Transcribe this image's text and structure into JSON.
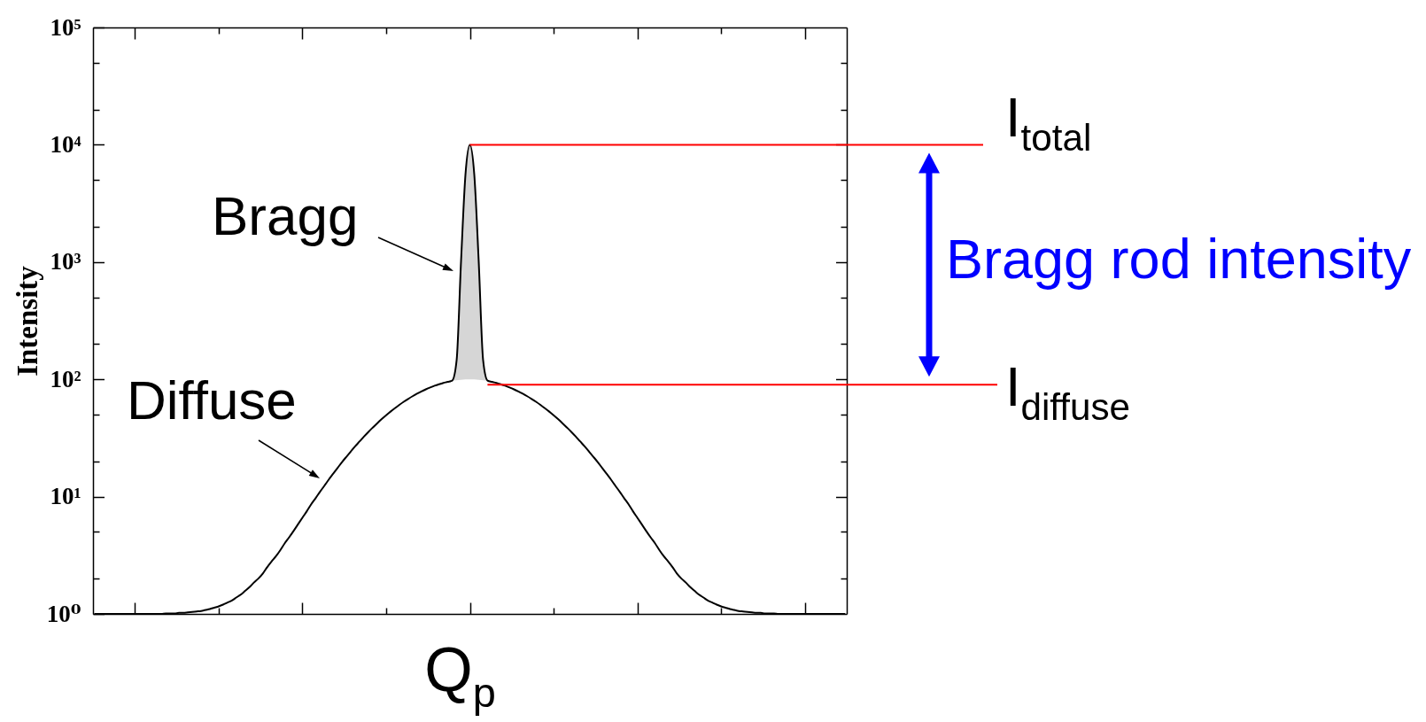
{
  "chart_data": {
    "type": "line",
    "xlabel": "Q$_{p}$",
    "ylabel": "Intensity",
    "categories": [
      null,
      null,
      null,
      null,
      null,
      null,
      null,
      null,
      null,
      null,
      null,
      null,
      null,
      null,
      null,
      null,
      null,
      null,
      null,
      null,
      null,
      null,
      null,
      null,
      null,
      null,
      null,
      null,
      null,
      null,
      null,
      null,
      null,
      null,
      null,
      null,
      null,
      null,
      null,
      null,
      null,
      null,
      null,
      null,
      null,
      null,
      null,
      null,
      null,
      null,
      null,
      null,
      null,
      null,
      null,
      null,
      null,
      null,
      null,
      null,
      null,
      null,
      null,
      null,
      null,
      null,
      null,
      null,
      null,
      null,
      null,
      null,
      null,
      null,
      null,
      null,
      null,
      null,
      null,
      null,
      null,
      null,
      null,
      null,
      null,
      null,
      null,
      null,
      null,
      null,
      null,
      null,
      null,
      null,
      null,
      null,
      null,
      null,
      null,
      null,
      null,
      null,
      null,
      null,
      null,
      null,
      null,
      null,
      null,
      null,
      null,
      null,
      null,
      null,
      null,
      null,
      null,
      null,
      null,
      null,
      null,
      null,
      null,
      null,
      null,
      null,
      null,
      null,
      null,
      null,
      null,
      null,
      null,
      null,
      null,
      null,
      null,
      null,
      null,
      null,
      null,
      null,
      null,
      null,
      null,
      null,
      null,
      null,
      null,
      null,
      null,
      null,
      null,
      null,
      null,
      null,
      null,
      null,
      null,
      null,
      null,
      null,
      null,
      null,
      null,
      null,
      null,
      null,
      null,
      null,
      null
    ],
    "series": [
      {
        "color": "#000000",
        "values": [
          1,
          1,
          1,
          1,
          1,
          1,
          1,
          1,
          1,
          1,
          1,
          1,
          1,
          1,
          1,
          1,
          1.01,
          1.01,
          1.01,
          1.02,
          1.02,
          1.03,
          1.04,
          1.05,
          1.06,
          1.08,
          1.1,
          1.13,
          1.16,
          1.2,
          1.25,
          1.3,
          1.38,
          1.46,
          1.57,
          1.69,
          1.85,
          2,
          2.2,
          2.5,
          2.8,
          3.1,
          3.5,
          4,
          4.5,
          5.1,
          5.8,
          6.6,
          7.5,
          8.6,
          9.7,
          11,
          12.4,
          14,
          15.7,
          17.6,
          19.7,
          21.9,
          24.3,
          26.9,
          29.6,
          32.6,
          35.7,
          38.9,
          42.3,
          45.8,
          49.4,
          53.1,
          56.8,
          60.6,
          64.4,
          68.1,
          71.8,
          75.4,
          78.9,
          82.2,
          85.3,
          88.2,
          90.8,
          93.2,
          95.2,
          97.7,
          146,
          1020,
          5570,
          10000,
          5570,
          1020,
          146,
          97.7,
          95.2,
          93.2,
          90.8,
          88.2,
          85.3,
          82.2,
          78.9,
          75.4,
          71.8,
          68.1,
          64.4,
          60.6,
          56.8,
          53.1,
          49.4,
          45.8,
          42.3,
          38.9,
          35.7,
          32.6,
          29.6,
          26.9,
          24.3,
          21.9,
          19.7,
          17.6,
          15.7,
          14,
          12.4,
          11,
          9.7,
          8.6,
          7.5,
          6.6,
          5.8,
          5.1,
          4.5,
          4,
          3.5,
          3.1,
          2.8,
          2.5,
          2.2,
          2,
          1.85,
          1.69,
          1.57,
          1.46,
          1.38,
          1.3,
          1.25,
          1.2,
          1.16,
          1.13,
          1.1,
          1.08,
          1.06,
          1.05,
          1.04,
          1.03,
          1.02,
          1.02,
          1.01,
          1.01,
          1.01,
          1,
          1,
          1,
          1,
          1,
          1,
          1,
          1,
          1,
          1,
          1,
          1,
          1,
          1,
          1,
          1
        ],
        "lower": [
          null,
          null,
          null,
          null,
          null,
          null,
          null,
          null,
          null,
          null,
          null,
          null,
          null,
          null,
          null,
          null,
          null,
          null,
          null,
          null,
          null,
          null,
          null,
          null,
          null,
          null,
          null,
          null,
          null,
          null,
          null,
          null,
          null,
          null,
          null,
          null,
          null,
          null,
          null,
          null,
          null,
          null,
          null,
          null,
          null,
          null,
          null,
          null,
          null,
          null,
          null,
          null,
          null,
          null,
          null,
          null,
          null,
          null,
          null,
          null,
          null,
          null,
          null,
          null,
          null,
          null,
          null,
          null,
          null,
          null,
          null,
          null,
          null,
          null,
          null,
          null,
          null,
          null,
          null,
          null,
          null,
          96.9,
          98.2,
          99.2,
          99.8,
          100,
          99.8,
          99.2,
          98.2,
          96.9,
          null,
          null,
          null,
          null,
          null,
          null,
          null,
          null,
          null,
          null,
          null,
          null,
          null,
          null,
          null,
          null,
          null,
          null,
          null,
          null,
          null,
          null,
          null,
          null,
          null,
          null,
          null,
          null,
          null,
          null,
          null,
          null,
          null,
          null,
          null,
          null,
          null,
          null,
          null,
          null,
          null,
          null,
          null,
          null,
          null,
          null,
          null,
          null,
          null,
          null,
          null,
          null,
          null,
          null,
          null,
          null,
          null,
          null,
          null,
          null,
          null,
          null,
          null,
          null,
          null,
          null,
          null,
          null,
          null,
          null,
          null,
          null,
          null,
          null,
          null,
          null,
          null,
          null,
          null,
          null,
          null
        ],
        "upper": [
          null,
          null,
          null,
          null,
          null,
          null,
          null,
          null,
          null,
          null,
          null,
          null,
          null,
          null,
          null,
          null,
          null,
          null,
          null,
          null,
          null,
          null,
          null,
          null,
          null,
          null,
          null,
          null,
          null,
          null,
          null,
          null,
          null,
          null,
          null,
          null,
          null,
          null,
          null,
          null,
          null,
          null,
          null,
          null,
          null,
          null,
          null,
          null,
          null,
          null,
          null,
          null,
          null,
          null,
          null,
          null,
          null,
          null,
          null,
          null,
          null,
          null,
          null,
          null,
          null,
          null,
          null,
          null,
          null,
          null,
          null,
          null,
          null,
          null,
          null,
          null,
          null,
          null,
          null,
          null,
          null,
          97.7,
          146,
          1020,
          5570,
          10000,
          5570,
          1020,
          146,
          97.7,
          null,
          null,
          null,
          null,
          null,
          null,
          null,
          null,
          null,
          null,
          null,
          null,
          null,
          null,
          null,
          null,
          null,
          null,
          null,
          null,
          null,
          null,
          null,
          null,
          null,
          null,
          null,
          null,
          null,
          null,
          null,
          null,
          null,
          null,
          null,
          null,
          null,
          null,
          null,
          null,
          null,
          null,
          null,
          null,
          null,
          null,
          null,
          null,
          null,
          null,
          null,
          null,
          null,
          null,
          null,
          null,
          null,
          null,
          null,
          null,
          null,
          null,
          null,
          null,
          null,
          null,
          null,
          null,
          null,
          null,
          null,
          null,
          null,
          null,
          null,
          null,
          null,
          null,
          null,
          null,
          null
        ]
      }
    ],
    "ylim": [
      1,
      100000
    ],
    "yticks": [
      {
        "value": 1,
        "label": "10⁰"
      },
      {
        "value": 2,
        "label": null
      },
      {
        "value": 5,
        "label": null
      },
      {
        "value": 10,
        "label": "10¹"
      },
      {
        "value": 20,
        "label": null
      },
      {
        "value": 50,
        "label": null
      },
      {
        "value": 100,
        "label": "10²"
      },
      {
        "value": 200,
        "label": null
      },
      {
        "value": 500,
        "label": null
      },
      {
        "value": 1000,
        "label": "10³"
      },
      {
        "value": 2000,
        "label": null
      },
      {
        "value": 5000,
        "label": null
      },
      {
        "value": 10000,
        "label": "10⁴"
      },
      {
        "value": 20000,
        "label": null
      },
      {
        "value": 50000,
        "label": null
      },
      {
        "value": 100000,
        "label": "10⁵"
      }
    ],
    "log": true,
    "ref_lines": [
      {
        "axis": "y",
        "value": 10000,
        "label": "I$_{total}$",
        "color": "#ff0000"
      },
      {
        "axis": "y",
        "value": 90,
        "label": "I$_{diffuse}$",
        "color": "#ff0000"
      }
    ],
    "annotations": [
      "Bragg",
      "Diffuse",
      "Bragg rod intensity"
    ]
  }
}
